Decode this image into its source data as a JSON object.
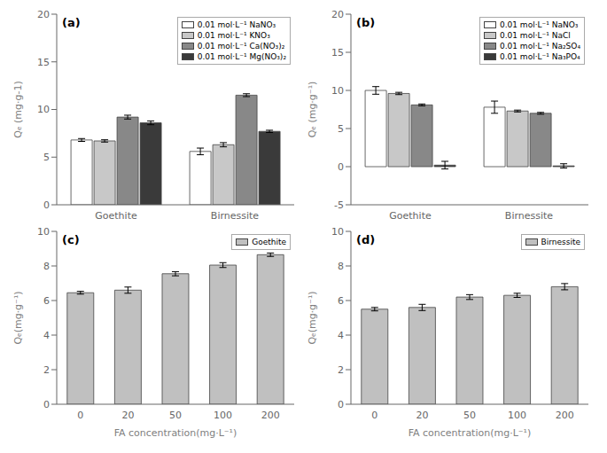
{
  "chart_data": [
    {
      "type": "bar",
      "annotation": "(a)",
      "categories": [
        "Goethite",
        "Birnessite"
      ],
      "series": [
        {
          "name": "0.01 mol·L⁻¹ NaNO₃",
          "color": "#ffffff",
          "values": [
            6.8,
            5.6
          ],
          "errors": [
            0.15,
            0.35
          ]
        },
        {
          "name": "0.01 mol·L⁻¹ KNO₃",
          "color": "#c8c8c8",
          "values": [
            6.7,
            6.3
          ],
          "errors": [
            0.12,
            0.22
          ]
        },
        {
          "name": "0.01 mol·L⁻¹ Ca(NO₃)₂",
          "color": "#888888",
          "values": [
            9.2,
            11.5
          ],
          "errors": [
            0.2,
            0.15
          ]
        },
        {
          "name": "0.01 mol·L⁻¹ Mg(NO₃)₂",
          "color": "#3a3a3a",
          "values": [
            8.6,
            7.7
          ],
          "errors": [
            0.2,
            0.12
          ]
        }
      ],
      "ylabel": "Qₑ (mg·g-1)",
      "ylim": [
        0,
        20
      ],
      "yticks": [
        0,
        5,
        10,
        15,
        20
      ],
      "legend": "upper right",
      "grid": false
    },
    {
      "type": "bar",
      "annotation": "(b)",
      "categories": [
        "Goethite",
        "Birnessite"
      ],
      "series": [
        {
          "name": "0.01 mol·L⁻¹ NaNO₃",
          "color": "#ffffff",
          "values": [
            10.0,
            7.8
          ],
          "errors": [
            0.5,
            0.8
          ]
        },
        {
          "name": "0.01 mol·L⁻¹ NaCl",
          "color": "#c8c8c8",
          "values": [
            9.6,
            7.3
          ],
          "errors": [
            0.15,
            0.12
          ]
        },
        {
          "name": "0.01 mol·L⁻¹ Na₂SO₄",
          "color": "#888888",
          "values": [
            8.1,
            7.0
          ],
          "errors": [
            0.12,
            0.12
          ]
        },
        {
          "name": "0.01 mol·L⁻¹ Na₃PO₄",
          "color": "#3a3a3a",
          "values": [
            0.2,
            0.1
          ],
          "errors": [
            0.5,
            0.28
          ]
        }
      ],
      "ylabel": "Qₑ (mg·g⁻¹)",
      "ylim": [
        -5,
        20
      ],
      "yticks": [
        -5,
        0,
        5,
        10,
        15,
        20
      ],
      "legend": "upper right",
      "grid": false
    },
    {
      "type": "bar",
      "annotation": "(c)",
      "categories": [
        "0",
        "20",
        "50",
        "100",
        "200"
      ],
      "series": [
        {
          "name": "Goethite",
          "color": "#c0c0c0",
          "values": [
            6.45,
            6.6,
            7.55,
            8.05,
            8.65
          ],
          "errors": [
            0.08,
            0.18,
            0.12,
            0.14,
            0.1
          ]
        }
      ],
      "ylabel": "Qₑ(mg·g⁻¹)",
      "xlabel": "FA concentration(mg·L⁻¹)",
      "ylim": [
        0,
        10
      ],
      "yticks": [
        0,
        2,
        4,
        6,
        8,
        10
      ],
      "legend": "upper right",
      "grid": false
    },
    {
      "type": "bar",
      "annotation": "(d)",
      "categories": [
        "0",
        "20",
        "50",
        "100",
        "200"
      ],
      "series": [
        {
          "name": "Birnessite",
          "color": "#c0c0c0",
          "values": [
            5.5,
            5.6,
            6.2,
            6.3,
            6.8
          ],
          "errors": [
            0.1,
            0.18,
            0.14,
            0.12,
            0.18
          ]
        }
      ],
      "ylabel": "Qₑ(mg·g⁻¹)",
      "xlabel": "FA concentration(mg·L⁻¹)",
      "ylim": [
        0,
        10
      ],
      "yticks": [
        0,
        2,
        4,
        6,
        8,
        10
      ],
      "legend": "upper right",
      "grid": false
    }
  ]
}
